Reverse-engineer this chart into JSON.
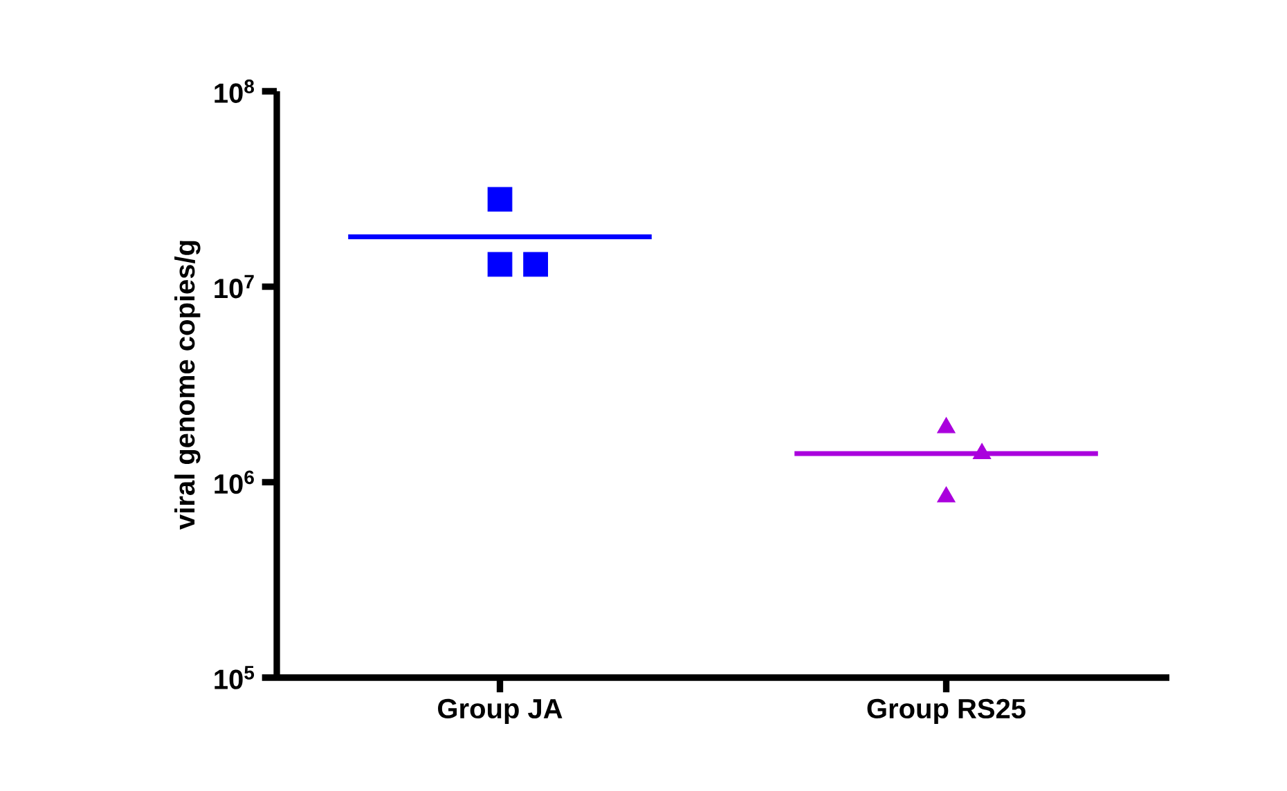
{
  "chart_data": {
    "type": "scatter",
    "ylabel": "viral genome copies/g",
    "categories": [
      "Group JA",
      "Group RS25"
    ],
    "series": [
      {
        "x": [
          "Group JA",
          "Group JA",
          "Group JA"
        ],
        "values": [
          28000000.0,
          13000000.0,
          13000000.0
        ],
        "color": "#0000ff",
        "marker": "square"
      },
      {
        "x": [
          "Group RS25",
          "Group RS25",
          "Group RS25"
        ],
        "values": [
          1900000.0,
          1400000.0,
          840000.0
        ],
        "color": "#aa00dd",
        "marker": "triangle"
      }
    ],
    "ref_lines": [
      {
        "axis": "y",
        "value": 18000000.0,
        "color": "#0000ff"
      },
      {
        "axis": "y",
        "value": 1400000.0,
        "color": "#aa00dd"
      }
    ],
    "log": "y",
    "ylim": [
      100000.0,
      100000000.0
    ],
    "yticks": [
      {
        "value": 100000.0,
        "label": "10$^{5}$"
      },
      {
        "value": 1000000.0,
        "label": "10$^{6}$"
      },
      {
        "value": 10000000.0,
        "label": "10$^{7}$"
      },
      {
        "value": 100000000.0,
        "label": "10$^{8}$"
      }
    ],
    "grid": false
  }
}
